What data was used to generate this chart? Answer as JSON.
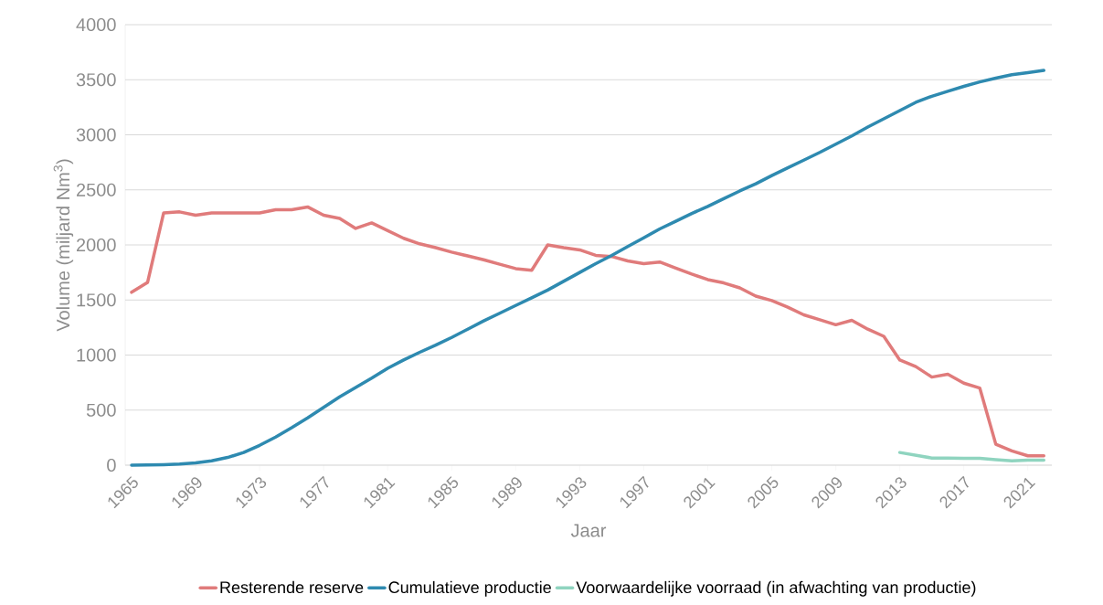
{
  "chart_data": {
    "type": "line",
    "xlabel": "Jaar",
    "ylabel": "Volume (miljard Nm$^{3}$)",
    "xlim": [
      1964.6,
      2022.5
    ],
    "xticks": [
      1965,
      1969,
      1973,
      1977,
      1981,
      1985,
      1989,
      1993,
      1997,
      2001,
      2005,
      2009,
      2013,
      2017,
      2021
    ],
    "ylim": [
      0,
      4000
    ],
    "yticks": [
      0,
      500,
      1000,
      1500,
      2000,
      2500,
      3000,
      3500,
      4000
    ],
    "grid": "y",
    "legend": "bottom",
    "line_style": "solid",
    "marker": "none",
    "x": [
      1965,
      1966,
      1967,
      1968,
      1969,
      1970,
      1971,
      1972,
      1973,
      1974,
      1975,
      1976,
      1977,
      1978,
      1979,
      1980,
      1981,
      1982,
      1983,
      1984,
      1985,
      1986,
      1987,
      1988,
      1989,
      1990,
      1991,
      1992,
      1993,
      1994,
      1995,
      1996,
      1997,
      1998,
      1999,
      2000,
      2001,
      2002,
      2003,
      2004,
      2005,
      2006,
      2007,
      2008,
      2009,
      2010,
      2011,
      2012,
      2013,
      2014,
      2015,
      2016,
      2017,
      2018,
      2019,
      2020,
      2021,
      2022
    ],
    "series": [
      {
        "name": "Resterende reserve",
        "color": "#e07b7b",
        "values": [
          1570,
          1660,
          2290,
          2300,
          2270,
          2290,
          2290,
          2290,
          2290,
          2320,
          2320,
          2345,
          2270,
          2240,
          2150,
          2200,
          2130,
          2060,
          2010,
          1975,
          1935,
          1900,
          1865,
          1825,
          1785,
          1770,
          2000,
          1975,
          1955,
          1905,
          1895,
          1855,
          1830,
          1845,
          1790,
          1735,
          1685,
          1655,
          1610,
          1535,
          1495,
          1435,
          1365,
          1320,
          1275,
          1315,
          1235,
          1170,
          955,
          895,
          800,
          825,
          745,
          700,
          190,
          130,
          85,
          85
        ]
      },
      {
        "name": "Cumulatieve productie",
        "color": "#2e8ab0",
        "values": [
          0,
          2,
          5,
          10,
          20,
          40,
          70,
          115,
          180,
          255,
          340,
          430,
          525,
          620,
          705,
          790,
          880,
          955,
          1025,
          1090,
          1160,
          1235,
          1310,
          1380,
          1450,
          1520,
          1590,
          1670,
          1750,
          1830,
          1905,
          1985,
          2065,
          2145,
          2215,
          2285,
          2350,
          2420,
          2490,
          2555,
          2630,
          2700,
          2770,
          2840,
          2915,
          2990,
          3070,
          3145,
          3220,
          3295,
          3350,
          3395,
          3440,
          3480,
          3515,
          3545,
          3565,
          3585
        ]
      },
      {
        "name": "Voorwaardelijke voorraad (in afwachting van productie)",
        "color": "#8fd4bf",
        "values": [
          null,
          null,
          null,
          null,
          null,
          null,
          null,
          null,
          null,
          null,
          null,
          null,
          null,
          null,
          null,
          null,
          null,
          null,
          null,
          null,
          null,
          null,
          null,
          null,
          null,
          null,
          null,
          null,
          null,
          null,
          null,
          null,
          null,
          null,
          null,
          null,
          null,
          null,
          null,
          null,
          null,
          null,
          null,
          null,
          null,
          null,
          null,
          null,
          115,
          90,
          65,
          65,
          62,
          62,
          50,
          40,
          45,
          45
        ]
      }
    ]
  }
}
